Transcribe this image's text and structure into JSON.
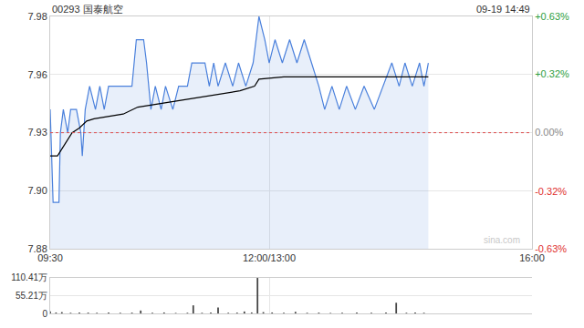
{
  "chart_data": [
    {
      "type": "line",
      "title": "00293 国泰航空",
      "subtitle": "09-19 14:49",
      "annotations": [
        "sina.com"
      ],
      "grid": true,
      "xlim": [
        0,
        330
      ],
      "xticks": [
        {
          "value": 0,
          "label": "09:30"
        },
        {
          "value": 150,
          "label": "12:00/13:00"
        },
        {
          "value": 330,
          "label": "16:00"
        }
      ],
      "ylim": [
        7.88,
        7.98
      ],
      "yticks": [
        {
          "value": 7.88,
          "label": "7.88"
        },
        {
          "value": 7.905,
          "label": "7.90"
        },
        {
          "value": 7.93,
          "label": "7.93"
        },
        {
          "value": 7.955,
          "label": "7.96"
        },
        {
          "value": 7.98,
          "label": "7.98"
        }
      ],
      "y2lim": [
        -0.63,
        0.63
      ],
      "y2ticks": [
        {
          "value": -0.63,
          "label": "-0.63%"
        },
        {
          "value": -0.32,
          "label": "-0.32%"
        },
        {
          "value": 0,
          "label": "0.00%"
        },
        {
          "value": 0.32,
          "label": "+0.32%"
        },
        {
          "value": 0.63,
          "label": "+0.63%"
        }
      ],
      "previous_close": 7.93,
      "series": [
        {
          "color": "#4a80dc",
          "line_style": "solid",
          "x": [
            0,
            1,
            2,
            6,
            7,
            9,
            12,
            14,
            18,
            21,
            22,
            24,
            27,
            31,
            34,
            37,
            40,
            47,
            56,
            59,
            64,
            66,
            69,
            72,
            76,
            79,
            84,
            88,
            94,
            97,
            106,
            109,
            112,
            115,
            120,
            125,
            129,
            134,
            139,
            143,
            147,
            150,
            154,
            159,
            164,
            169,
            174,
            179,
            184,
            188,
            193,
            198,
            203,
            209,
            215,
            222,
            228,
            234,
            239,
            243,
            248,
            253,
            256,
            259
          ],
          "values": [
            7.94,
            7.92,
            7.9,
            7.9,
            7.93,
            7.94,
            7.93,
            7.94,
            7.94,
            7.93,
            7.92,
            7.94,
            7.95,
            7.94,
            7.95,
            7.94,
            7.95,
            7.95,
            7.95,
            7.97,
            7.97,
            7.96,
            7.94,
            7.95,
            7.94,
            7.95,
            7.94,
            7.95,
            7.95,
            7.96,
            7.96,
            7.95,
            7.96,
            7.95,
            7.96,
            7.95,
            7.96,
            7.95,
            7.96,
            7.98,
            7.97,
            7.96,
            7.97,
            7.96,
            7.97,
            7.96,
            7.97,
            7.96,
            7.95,
            7.94,
            7.95,
            7.94,
            7.95,
            7.94,
            7.95,
            7.94,
            7.95,
            7.96,
            7.95,
            7.96,
            7.95,
            7.96,
            7.95,
            7.96
          ]
        },
        {
          "color": "#000000",
          "line_style": "solid",
          "x": [
            0,
            5,
            10,
            15,
            20,
            25,
            30,
            40,
            50,
            60,
            70,
            80,
            90,
            100,
            110,
            120,
            130,
            140,
            143,
            160,
            180,
            200,
            220,
            240,
            259
          ],
          "values": [
            7.92,
            7.92,
            7.925,
            7.93,
            7.932,
            7.935,
            7.936,
            7.937,
            7.938,
            7.941,
            7.942,
            7.943,
            7.944,
            7.945,
            7.946,
            7.947,
            7.948,
            7.95,
            7.953,
            7.954,
            7.954,
            7.954,
            7.954,
            7.954,
            7.954
          ]
        }
      ]
    },
    {
      "type": "bar",
      "tick_labels": "y",
      "color": "#444444",
      "xlim": [
        0,
        330
      ],
      "ylim": [
        0,
        1104100
      ],
      "yticks": [
        0,
        {
          "value": 552100,
          "label": "55.21万"
        },
        {
          "value": 1104100,
          "label": "110.41万"
        }
      ],
      "x": [
        0,
        4,
        8,
        14,
        20,
        26,
        32,
        40,
        48,
        56,
        62,
        70,
        78,
        86,
        94,
        98,
        104,
        110,
        115,
        122,
        128,
        133,
        138,
        142,
        146,
        152,
        160,
        168,
        176,
        184,
        192,
        200,
        210,
        220,
        230,
        237,
        244,
        250,
        256
      ],
      "values": [
        60000,
        30000,
        40000,
        20000,
        30000,
        25000,
        20000,
        30000,
        20000,
        25000,
        90000,
        20000,
        30000,
        15000,
        20000,
        250000,
        20000,
        30000,
        180000,
        20000,
        25000,
        60000,
        30000,
        1100000,
        40000,
        30000,
        20000,
        50000,
        20000,
        25000,
        15000,
        20000,
        30000,
        20000,
        25000,
        330000,
        20000,
        30000,
        20000
      ]
    }
  ]
}
